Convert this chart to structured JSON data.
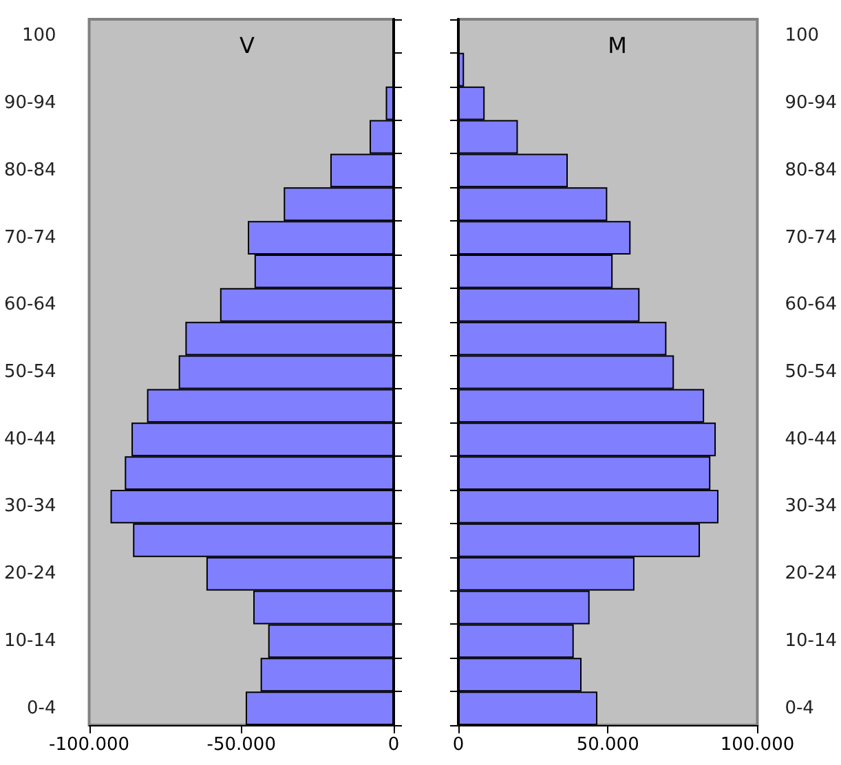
{
  "chart_data": [
    {
      "type": "bar",
      "orientation": "horizontal",
      "title": "V",
      "grid": false,
      "categories": [
        "100",
        null,
        "90-94",
        null,
        "80-84",
        null,
        "70-74",
        null,
        "60-64",
        null,
        "50-54",
        null,
        "40-44",
        null,
        "30-34",
        null,
        "20-24",
        null,
        "10-14",
        null,
        "0-4"
      ],
      "series": [
        {
          "color": "#8080ff",
          "values": [
            0,
            0,
            -2600,
            -7900,
            -20800,
            -36100,
            -47900,
            -45700,
            -57000,
            -68400,
            -70600,
            -81000,
            -86100,
            -88300,
            -93000,
            -85600,
            -61500,
            -46100,
            -41200,
            -43700,
            -48600
          ]
        }
      ],
      "xlim": [
        -100000,
        0
      ],
      "xticks": [
        {
          "value": -100000,
          "label": "-100.000"
        },
        {
          "value": -50000,
          "label": "-50.000"
        },
        0
      ]
    },
    {
      "type": "bar",
      "orientation": "horizontal",
      "title": "M",
      "grid": false,
      "categories": [
        "100",
        null,
        "90-94",
        null,
        "80-84",
        null,
        "70-74",
        null,
        "60-64",
        null,
        "50-54",
        null,
        "40-44",
        null,
        "30-34",
        null,
        "20-24",
        null,
        "10-14",
        null,
        "0-4"
      ],
      "series": [
        {
          "color": "#8080ff",
          "values": [
            0,
            1900,
            8800,
            19900,
            36600,
            49800,
            57600,
            51600,
            60600,
            69600,
            72100,
            82200,
            86100,
            84300,
            87000,
            80800,
            58900,
            43900,
            38600,
            41200,
            46500
          ]
        }
      ],
      "xlim": [
        0,
        100000
      ],
      "xticks": [
        0,
        {
          "value": 50000,
          "label": "50.000"
        },
        {
          "value": 100000,
          "label": "100.000"
        }
      ]
    }
  ]
}
